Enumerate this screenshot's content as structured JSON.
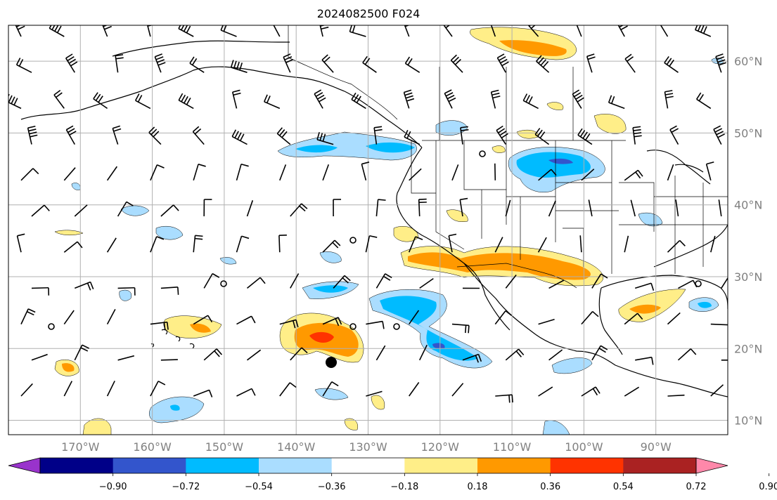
{
  "title": "2024082500 F024",
  "map": {
    "projection": "PlateCarree",
    "lon_ticks": [
      "170°W",
      "160°W",
      "150°W",
      "140°W",
      "130°W",
      "120°W",
      "110°W",
      "100°W",
      "90°W"
    ],
    "lat_ticks": [
      "60°N",
      "50°N",
      "40°N",
      "30°N",
      "20°N",
      "10°N"
    ],
    "grid": true,
    "label_color": "#808080"
  },
  "colorbar": {
    "extend": "both",
    "colors": [
      "#9933cc",
      "#000088",
      "#3355cc",
      "#00bbff",
      "#aaddff",
      "#ffffff",
      "#ffee88",
      "#ff9900",
      "#ff3300",
      "#aa2222",
      "#ff88aa"
    ],
    "tick_labels": [
      "−0.90",
      "−0.72",
      "−0.54",
      "−0.36",
      "−0.18",
      "0.18",
      "0.36",
      "0.54",
      "0.72",
      "0.90"
    ]
  },
  "chart_data": {
    "type": "heatmap",
    "title": "2024082500 F024",
    "lon_range": [
      -180,
      -80
    ],
    "lat_range": [
      8,
      65
    ],
    "levels": [
      -0.9,
      -0.72,
      -0.54,
      -0.36,
      -0.18,
      0.18,
      0.36,
      0.54,
      0.72,
      0.9
    ],
    "features": [
      {
        "kind": "positive",
        "level": 0.54,
        "lon": -137,
        "lat": 21.5
      },
      {
        "kind": "positive",
        "level": 0.54,
        "lon": -106,
        "lat": 31
      },
      {
        "kind": "positive",
        "level": 0.54,
        "lon": -107,
        "lat": 60.5
      },
      {
        "kind": "negative",
        "level": -0.54,
        "lon": -105,
        "lat": 45.5
      },
      {
        "kind": "negative",
        "level": -0.54,
        "lon": -121,
        "lat": 25
      },
      {
        "kind": "negative",
        "level": -0.36,
        "lon": -141,
        "lat": 48
      }
    ],
    "markers": [
      {
        "kind": "filled-circle",
        "lon": -136.5,
        "lat": 17.5
      }
    ]
  }
}
